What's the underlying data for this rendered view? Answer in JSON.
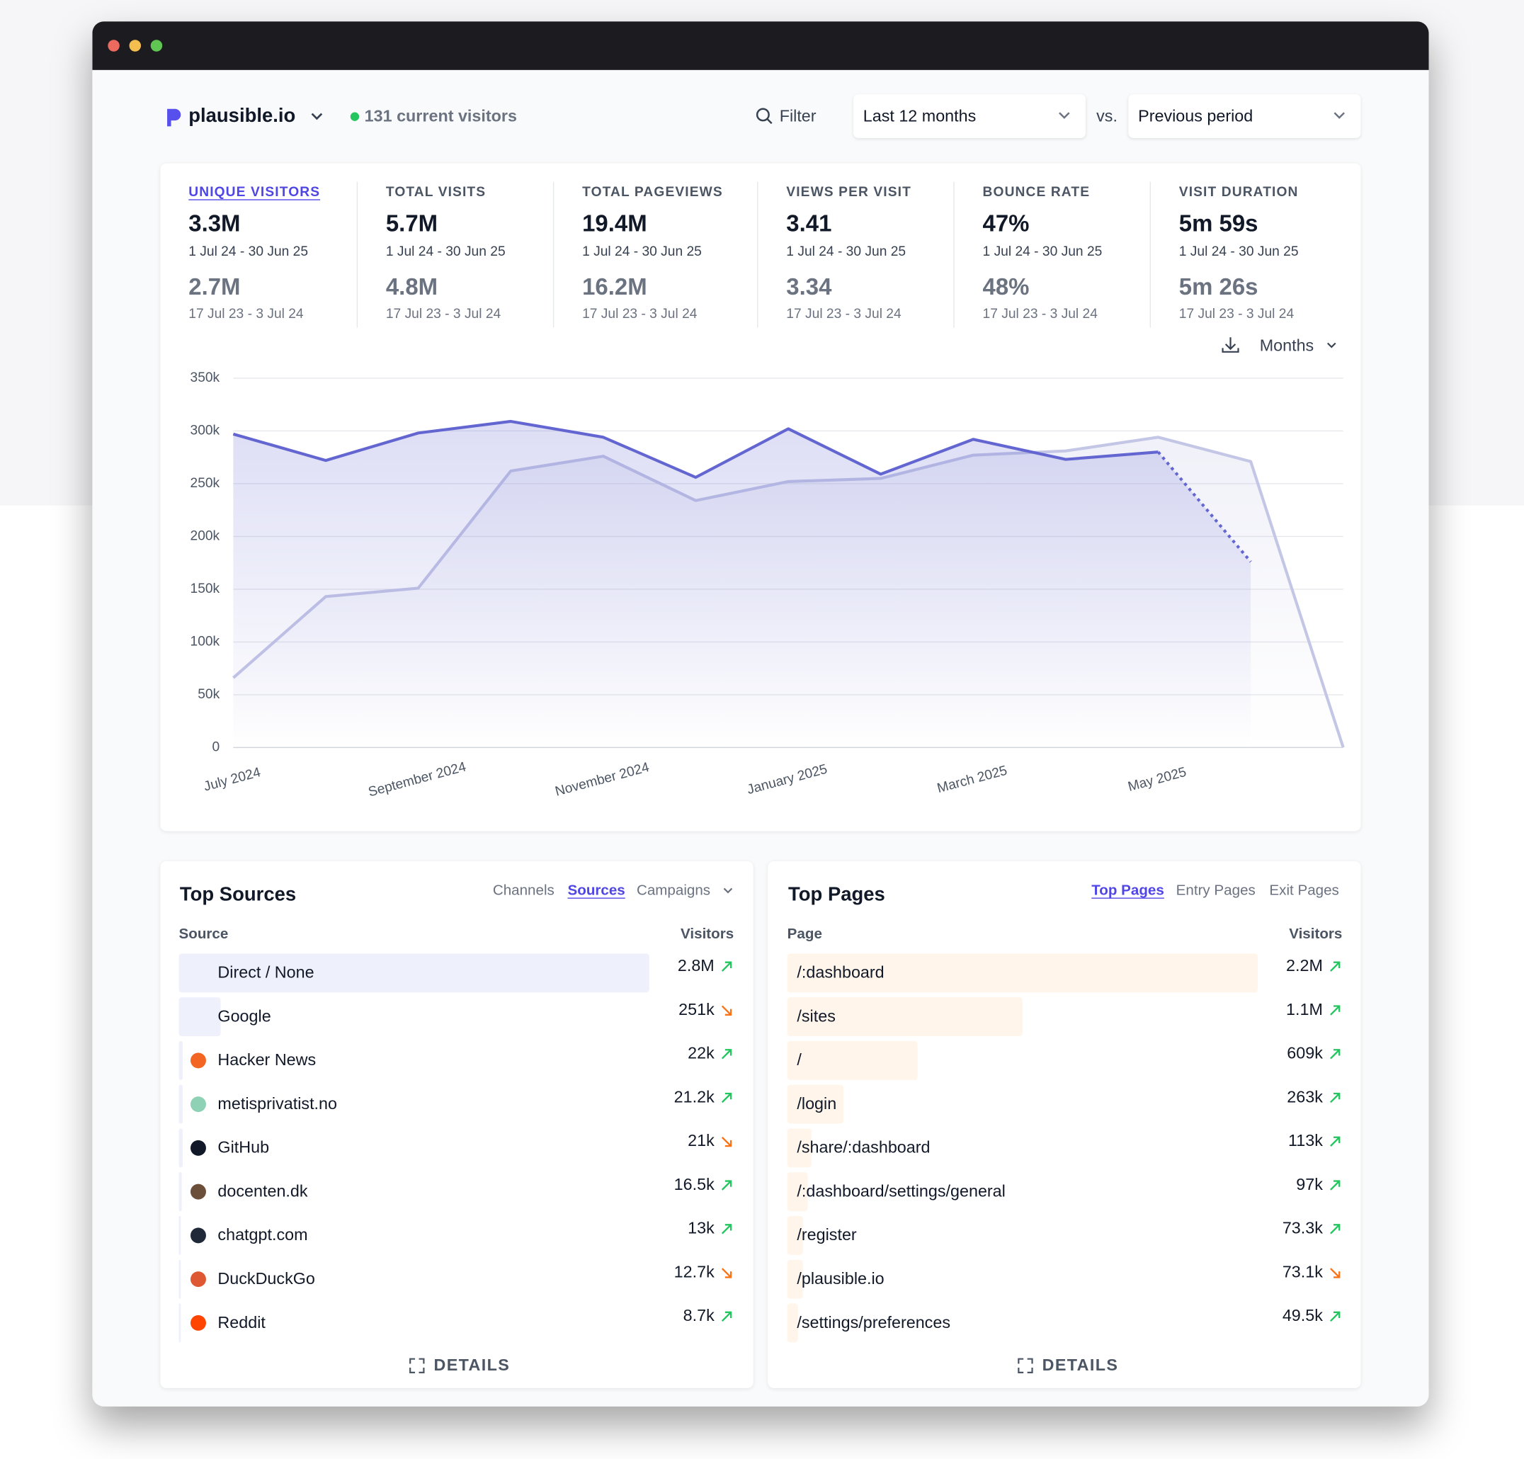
{
  "header": {
    "site": "plausible.io",
    "current_visitors": "131 current visitors",
    "filter": "Filter",
    "period": "Last 12 months",
    "vs": "vs.",
    "comparison": "Previous period",
    "interval": "Months"
  },
  "stats": {
    "active": 0,
    "items": [
      {
        "label": "UNIQUE VISITORS",
        "value": "3.3M",
        "period": "1 Jul 24 - 30 Jun 25",
        "previous_value": "2.7M",
        "previous_period": "17 Jul 23 - 3 Jul 24"
      },
      {
        "label": "TOTAL VISITS",
        "value": "5.7M",
        "period": "1 Jul 24 - 30 Jun 25",
        "previous_value": "4.8M",
        "previous_period": "17 Jul 23 - 3 Jul 24"
      },
      {
        "label": "TOTAL PAGEVIEWS",
        "value": "19.4M",
        "period": "1 Jul 24 - 30 Jun 25",
        "previous_value": "16.2M",
        "previous_period": "17 Jul 23 - 3 Jul 24"
      },
      {
        "label": "VIEWS PER VISIT",
        "value": "3.41",
        "period": "1 Jul 24 - 30 Jun 25",
        "previous_value": "3.34",
        "previous_period": "17 Jul 23 - 3 Jul 24"
      },
      {
        "label": "BOUNCE RATE",
        "value": "47%",
        "period": "1 Jul 24 - 30 Jun 25",
        "previous_value": "48%",
        "previous_period": "17 Jul 23 - 3 Jul 24"
      },
      {
        "label": "VISIT DURATION",
        "value": "5m 59s",
        "period": "1 Jul 24 - 30 Jun 25",
        "previous_value": "5m 26s",
        "previous_period": "17 Jul 23 - 3 Jul 24"
      }
    ]
  },
  "chart_data": {
    "type": "line",
    "categories": [
      "July 2024",
      null,
      "September 2024",
      null,
      "November 2024",
      null,
      "January 2025",
      null,
      "March 2025",
      null,
      "May 2025",
      null,
      null
    ],
    "series": [
      {
        "name": "Previous period",
        "color": "#c4c6e6",
        "values": [
          66000,
          143000,
          151000,
          262000,
          276000,
          234000,
          252000,
          255000,
          277000,
          281000,
          294000,
          271000,
          0
        ]
      },
      {
        "name": "Current period",
        "color": "#6366d1",
        "dashed_last": true,
        "values": [
          297000,
          272000,
          298000,
          309000,
          294000,
          256000,
          302000,
          259000,
          292000,
          273000,
          280000,
          176000,
          null
        ]
      }
    ],
    "ylim": [
      0,
      350000
    ],
    "yticks": [
      {
        "value": 0,
        "label": "0"
      },
      {
        "value": 50000,
        "label": "50k"
      },
      {
        "value": 100000,
        "label": "100k"
      },
      {
        "value": 150000,
        "label": "150k"
      },
      {
        "value": 200000,
        "label": "200k"
      },
      {
        "value": 250000,
        "label": "250k"
      },
      {
        "value": 300000,
        "label": "300k"
      },
      {
        "value": 350000,
        "label": "350k"
      }
    ],
    "grid": true
  },
  "top_sources": {
    "title": "Top Sources",
    "tabs": [
      "Channels",
      "Sources",
      "Campaigns"
    ],
    "active_tab": 1,
    "columns": [
      "Source",
      "Visitors"
    ],
    "bar_color": "#eef0fb",
    "names": [
      "Direct / None",
      "Google",
      "Hacker News",
      "metisprivatist.no",
      "GitHub",
      "docenten.dk",
      "chatgpt.com",
      "DuckDuckGo",
      "Reddit"
    ],
    "values": [
      2800000,
      251000,
      22000,
      21200,
      21000,
      16500,
      13000,
      12700,
      8700
    ],
    "value_labels": [
      "2.8M",
      "251k",
      "22k",
      "21.2k",
      "21k",
      "16.5k",
      "13k",
      "12.7k",
      "8.7k"
    ],
    "trends": [
      "up",
      "down",
      "up",
      "up",
      "down",
      "up",
      "up",
      "down",
      "up"
    ],
    "details": "DETAILS"
  },
  "top_pages": {
    "title": "Top Pages",
    "tabs": [
      "Top Pages",
      "Entry Pages",
      "Exit Pages"
    ],
    "active_tab": 0,
    "columns": [
      "Page",
      "Visitors"
    ],
    "bar_color": "#fff5ea",
    "names": [
      "/:dashboard",
      "/sites",
      "/",
      "/login",
      "/share/:dashboard",
      "/:dashboard/settings/general",
      "/register",
      "/plausible.io",
      "/settings/preferences"
    ],
    "values": [
      2200000,
      1100000,
      609000,
      263000,
      113000,
      97000,
      73300,
      73100,
      49500
    ],
    "value_labels": [
      "2.2M",
      "1.1M",
      "609k",
      "263k",
      "113k",
      "97k",
      "73.3k",
      "73.1k",
      "49.5k"
    ],
    "trends": [
      "up",
      "up",
      "up",
      "up",
      "up",
      "up",
      "up",
      "down",
      "up"
    ],
    "details": "DETAILS"
  }
}
